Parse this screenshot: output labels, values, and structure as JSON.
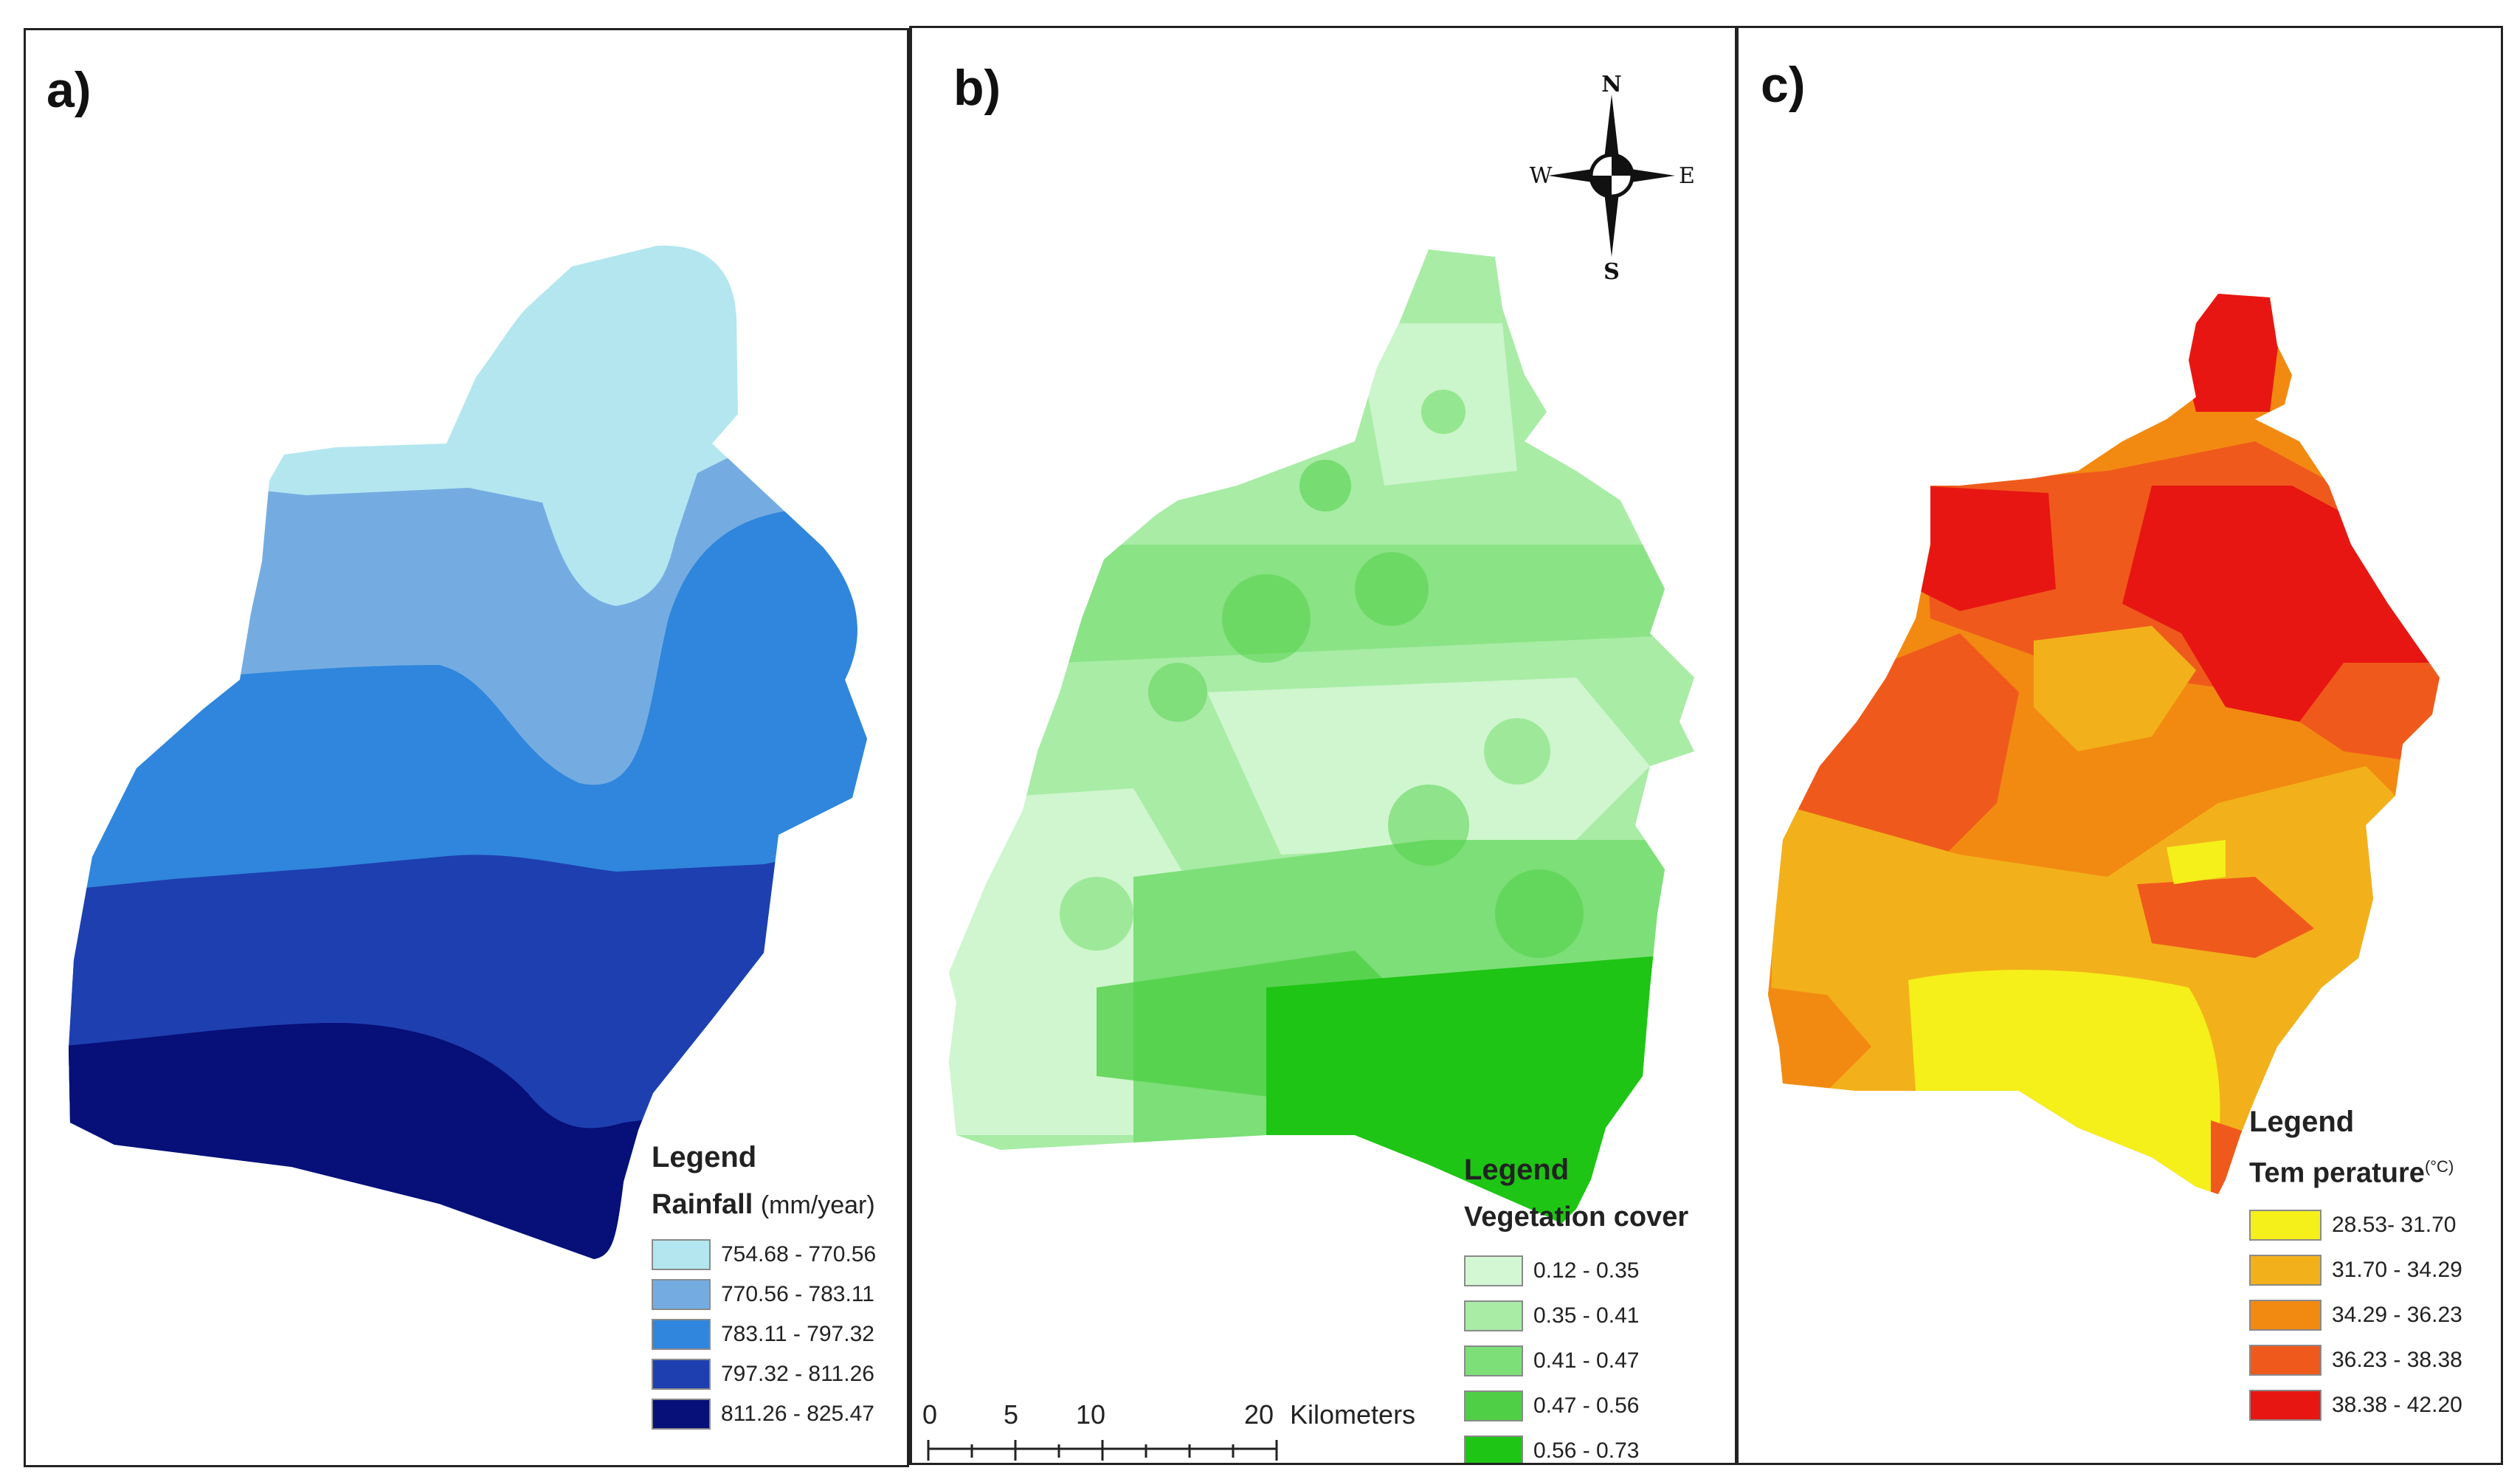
{
  "panels": {
    "a": {
      "letter": "a)",
      "legend_title": "Legend",
      "variable": "Rainfall",
      "unit": "(mm/year)",
      "classes": [
        {
          "label": "754.68 - 770.56",
          "color": "#b3e6ef"
        },
        {
          "label": "770.56 - 783.11",
          "color": "#74ace2"
        },
        {
          "label": "783.11 - 797.32",
          "color": "#2f86dc"
        },
        {
          "label": "797.32 - 811.26",
          "color": "#1e3fb0"
        },
        {
          "label": "811.26 - 825.47",
          "color": "#070f78"
        }
      ]
    },
    "b": {
      "letter": "b)",
      "legend_title": "Legend",
      "variable": "Vegetation cover",
      "classes": [
        {
          "label": "0.12 - 0.35",
          "color": "#d3f7d3"
        },
        {
          "label": "0.35 - 0.41",
          "color": "#a8eca6"
        },
        {
          "label": "0.41 - 0.47",
          "color": "#7ddf78"
        },
        {
          "label": "0.47 - 0.56",
          "color": "#4fcf46"
        },
        {
          "label": "0.56 - 0.73",
          "color": "#1ec514"
        }
      ],
      "compass": {
        "north": "N",
        "south": "S",
        "east": "E",
        "west": "W"
      },
      "scale_bar": {
        "ticks": [
          "0",
          "5",
          "10",
          "20"
        ],
        "unit": "Kilometers"
      }
    },
    "c": {
      "letter": "c)",
      "legend_title": "Legend",
      "variable": "Tem perature",
      "unit": "(°C)",
      "classes": [
        {
          "label": "28.53- 31.70",
          "color": "#f5ef1a"
        },
        {
          "label": "31.70 - 34.29",
          "color": "#f2b11a"
        },
        {
          "label": "34.29 - 36.23",
          "color": "#f28a12"
        },
        {
          "label": "36.23 - 38.38",
          "color": "#ef5a1c"
        },
        {
          "label": "38.38 - 42.20",
          "color": "#e81612"
        }
      ]
    }
  }
}
